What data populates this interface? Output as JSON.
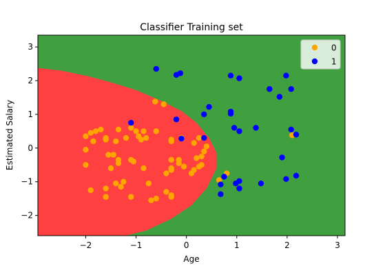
{
  "chart_data": {
    "type": "scatter",
    "title": "Classifier Training set",
    "xlabel": "Age",
    "ylabel": "Estimated Salary",
    "xlim": [
      -2.95,
      3.15
    ],
    "ylim": [
      -2.6,
      3.35
    ],
    "xticks": [
      -2,
      -1,
      0,
      1,
      2,
      3
    ],
    "yticks": [
      -2,
      -1,
      0,
      1,
      2,
      3
    ],
    "grid": false,
    "legend_placement": "top-right",
    "decision_regions": {
      "colors": {
        "0": "#ff4040",
        "1": "#40a040"
      },
      "boundary_points": [
        [
          -2.95,
          2.38
        ],
        [
          -2.5,
          2.3
        ],
        [
          -2.0,
          2.15
        ],
        [
          -1.5,
          1.95
        ],
        [
          -1.0,
          1.72
        ],
        [
          -0.5,
          1.4
        ],
        [
          -0.1,
          1.1
        ],
        [
          0.2,
          0.75
        ],
        [
          0.45,
          0.3
        ],
        [
          0.6,
          -0.15
        ],
        [
          0.6,
          -0.6
        ],
        [
          0.4,
          -1.2
        ],
        [
          0.1,
          -1.7
        ],
        [
          -0.3,
          -2.1
        ],
        [
          -0.8,
          -2.45
        ],
        [
          -1.2,
          -2.6
        ]
      ]
    },
    "series": [
      {
        "name": "0",
        "color": "#ffa500",
        "points": [
          [
            -2.0,
            0.35
          ],
          [
            -1.9,
            0.45
          ],
          [
            -1.8,
            0.5
          ],
          [
            -1.7,
            0.55
          ],
          [
            -1.85,
            0.2
          ],
          [
            -2.0,
            -0.05
          ],
          [
            -1.6,
            0.3
          ],
          [
            -1.55,
            -0.2
          ],
          [
            -1.45,
            -0.2
          ],
          [
            -1.35,
            -0.35
          ],
          [
            -1.4,
            0.2
          ],
          [
            -1.35,
            0.55
          ],
          [
            -1.2,
            0.3
          ],
          [
            -1.1,
            0.6
          ],
          [
            -1.0,
            0.5
          ],
          [
            -0.95,
            0.35
          ],
          [
            -0.85,
            0.5
          ],
          [
            -0.9,
            0.25
          ],
          [
            -0.8,
            0.3
          ],
          [
            -0.6,
            0.5
          ],
          [
            -1.5,
            -0.6
          ],
          [
            -1.35,
            -0.45
          ],
          [
            -1.1,
            -0.35
          ],
          [
            -1.05,
            -0.4
          ],
          [
            -0.85,
            -0.6
          ],
          [
            -2.0,
            -0.5
          ],
          [
            -1.9,
            -1.25
          ],
          [
            -1.6,
            -1.2
          ],
          [
            -1.4,
            -1.05
          ],
          [
            -1.3,
            -1.15
          ],
          [
            -1.25,
            -1.0
          ],
          [
            -1.1,
            -1.45
          ],
          [
            -0.75,
            -1.05
          ],
          [
            -0.7,
            -1.55
          ],
          [
            -0.6,
            -1.5
          ],
          [
            -0.4,
            -1.3
          ],
          [
            -0.3,
            -1.4
          ],
          [
            -0.3,
            -1.45
          ],
          [
            -0.3,
            0.25
          ],
          [
            -0.3,
            0.2
          ],
          [
            -0.3,
            -0.35
          ],
          [
            -0.3,
            -0.6
          ],
          [
            -0.3,
            -0.65
          ],
          [
            -0.4,
            -0.75
          ],
          [
            -0.15,
            -0.45
          ],
          [
            -0.15,
            -0.35
          ],
          [
            -0.1,
            0.3
          ],
          [
            -0.05,
            -0.55
          ],
          [
            0.15,
            0.15
          ],
          [
            0.2,
            -0.3
          ],
          [
            0.25,
            -0.55
          ],
          [
            0.3,
            -0.25
          ],
          [
            0.3,
            -0.5
          ],
          [
            0.35,
            -0.1
          ],
          [
            0.4,
            0.05
          ],
          [
            0.1,
            -0.75
          ],
          [
            0.15,
            -0.65
          ],
          [
            0.65,
            -0.95
          ],
          [
            0.8,
            -0.75
          ],
          [
            -1.6,
            -1.45
          ],
          [
            -0.45,
            1.3
          ],
          [
            -0.62,
            1.38
          ],
          [
            -1.6,
            0.25
          ],
          [
            2.1,
            0.38
          ],
          [
            0.25,
            0.3
          ]
        ]
      },
      {
        "name": "1",
        "color": "#0000ff",
        "points": [
          [
            -0.6,
            2.35
          ],
          [
            -0.2,
            2.17
          ],
          [
            -0.12,
            2.22
          ],
          [
            0.88,
            2.15
          ],
          [
            1.05,
            2.07
          ],
          [
            1.98,
            2.15
          ],
          [
            1.65,
            1.75
          ],
          [
            2.08,
            1.75
          ],
          [
            1.85,
            1.52
          ],
          [
            0.45,
            1.22
          ],
          [
            0.35,
            1.0
          ],
          [
            0.88,
            1.08
          ],
          [
            0.88,
            1.02
          ],
          [
            -0.2,
            0.85
          ],
          [
            -1.1,
            0.75
          ],
          [
            0.95,
            0.6
          ],
          [
            1.05,
            0.5
          ],
          [
            1.38,
            0.6
          ],
          [
            2.08,
            0.55
          ],
          [
            2.18,
            0.4
          ],
          [
            -0.1,
            0.28
          ],
          [
            0.35,
            0.3
          ],
          [
            1.9,
            -0.28
          ],
          [
            0.75,
            -0.85
          ],
          [
            0.68,
            -1.08
          ],
          [
            0.68,
            -1.37
          ],
          [
            1.05,
            -0.98
          ],
          [
            0.98,
            -1.05
          ],
          [
            1.05,
            -1.2
          ],
          [
            1.48,
            -1.05
          ],
          [
            1.98,
            -0.92
          ],
          [
            2.18,
            -0.82
          ]
        ]
      }
    ]
  }
}
